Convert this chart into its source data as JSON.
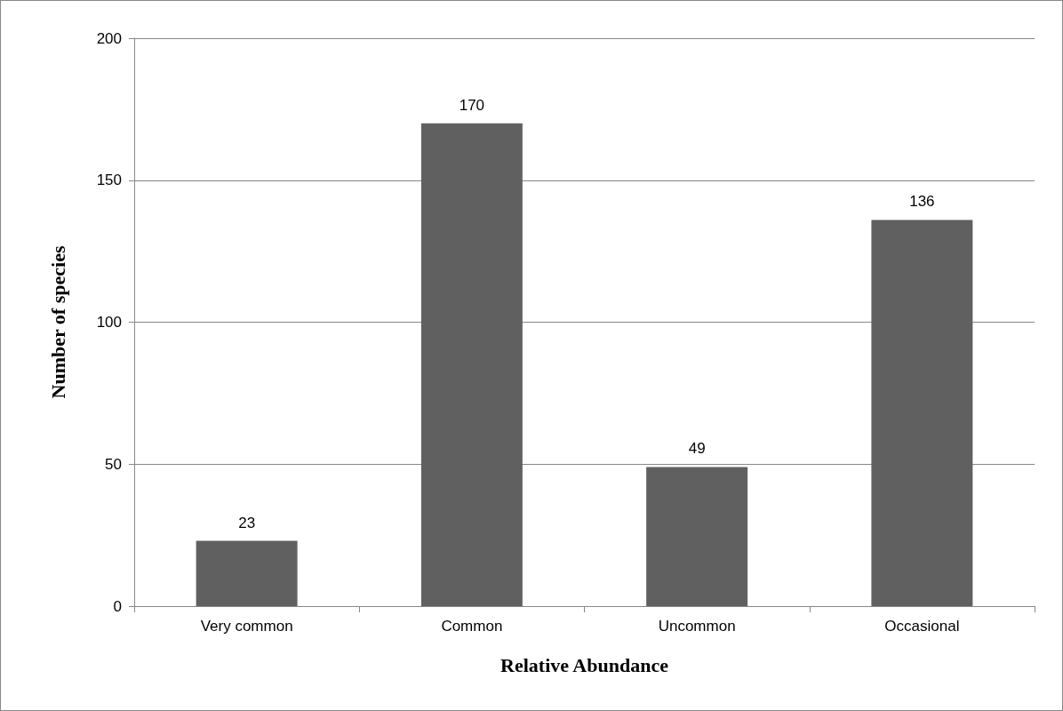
{
  "chart_data": {
    "type": "bar",
    "xlabel": "Relative Abundance",
    "ylabel": "Number of species",
    "categories": [
      "Very common",
      "Common",
      "Uncommon",
      "Occasional"
    ],
    "values": [
      23,
      170,
      49,
      136
    ],
    "color": "#606060",
    "ylim": [
      0,
      200
    ],
    "yticks": [
      0,
      50,
      100,
      150,
      200
    ],
    "grid": "y",
    "data_labels": true
  }
}
